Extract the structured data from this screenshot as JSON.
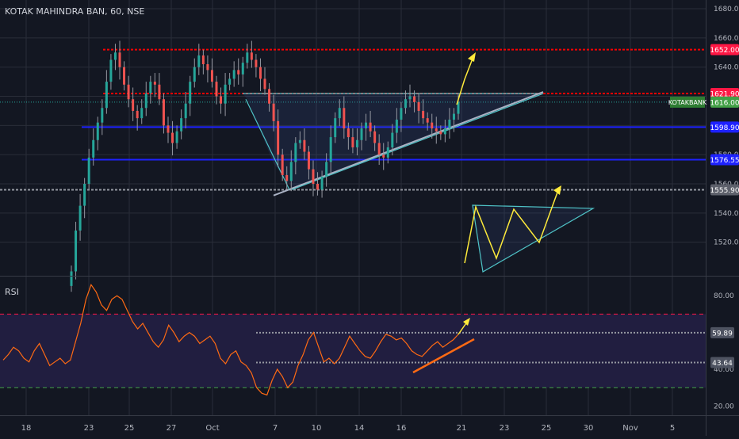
{
  "header": {
    "symbol": "KOTAK MAHINDRA BAN, 60, NSE",
    "rsi_label": "RSI"
  },
  "colors": {
    "background": "#131722",
    "grid": "#2a2e39",
    "bull": "#26a69a",
    "bear": "#ef5350",
    "resistance": "#ff0000",
    "support": "#1e22ff",
    "gray_level": "#9598a1",
    "pattern_line": "#4fc3c7",
    "wick": "#9598a1",
    "arrow": "#ffeb3b",
    "rsi_line": "#ff6a13",
    "rsi_zone": "#211e40"
  },
  "chart_data": [
    {
      "type": "candlestick",
      "title": "KOTAK MAHINDRA BAN, 60, NSE",
      "x_tick_labels": [
        "18",
        "23",
        "25",
        "27",
        "Oct",
        "7",
        "10",
        "14",
        "16",
        "21",
        "23",
        "25",
        "30",
        "Nov",
        "5"
      ],
      "y_tick_labels": [
        "1680.00",
        "1660.00",
        "1640.00",
        "1620.00",
        "1600.00",
        "1580.00",
        "1560.00",
        "1540.00",
        "1520.00"
      ],
      "ylim": [
        1497,
        1686
      ],
      "price_levels": [
        {
          "label": "1652.00",
          "value": 1652.0,
          "kind": "resistance"
        },
        {
          "label": "1621.90",
          "value": 1621.9,
          "kind": "resistance"
        },
        {
          "label": "1598.90",
          "value": 1598.9,
          "kind": "support"
        },
        {
          "label": "1576.55",
          "value": 1576.55,
          "kind": "support"
        },
        {
          "label": "1555.90",
          "value": 1555.9,
          "kind": "gray"
        }
      ],
      "last_price": {
        "label": "KOTAKBANK",
        "value_label": "1616.00",
        "value": 1616.0
      },
      "candles_close": [
        1500,
        1528,
        1545,
        1560,
        1578,
        1590,
        1602,
        1612,
        1630,
        1645,
        1650,
        1640,
        1628,
        1618,
        1610,
        1605,
        1612,
        1622,
        1630,
        1628,
        1618,
        1600,
        1595,
        1588,
        1596,
        1605,
        1615,
        1630,
        1640,
        1648,
        1642,
        1638,
        1630,
        1620,
        1615,
        1628,
        1632,
        1638,
        1635,
        1643,
        1650,
        1645,
        1640,
        1632,
        1625,
        1615,
        1603,
        1580,
        1566,
        1562,
        1575,
        1588,
        1590,
        1582,
        1570,
        1560,
        1556,
        1565,
        1575,
        1592,
        1605,
        1612,
        1598,
        1592,
        1585,
        1590,
        1598,
        1602,
        1596,
        1588,
        1580,
        1578,
        1585,
        1595,
        1604,
        1612,
        1618,
        1620,
        1616,
        1610,
        1605,
        1602,
        1598,
        1596,
        1594,
        1598,
        1604,
        1608,
        1616
      ],
      "candles_open": [
        1490,
        1500,
        1528,
        1545,
        1560,
        1578,
        1590,
        1602,
        1612,
        1630,
        1645,
        1650,
        1640,
        1628,
        1618,
        1610,
        1605,
        1612,
        1622,
        1630,
        1628,
        1618,
        1600,
        1595,
        1588,
        1596,
        1605,
        1615,
        1630,
        1640,
        1648,
        1642,
        1638,
        1630,
        1620,
        1615,
        1628,
        1632,
        1638,
        1635,
        1643,
        1650,
        1645,
        1640,
        1632,
        1625,
        1615,
        1603,
        1580,
        1566,
        1562,
        1575,
        1588,
        1590,
        1582,
        1570,
        1560,
        1556,
        1565,
        1575,
        1592,
        1605,
        1612,
        1598,
        1592,
        1585,
        1590,
        1598,
        1602,
        1596,
        1588,
        1580,
        1578,
        1585,
        1595,
        1604,
        1612,
        1618,
        1620,
        1616,
        1610,
        1605,
        1602,
        1598,
        1596,
        1594,
        1598,
        1604,
        1608
      ]
    },
    {
      "type": "line",
      "title": "RSI",
      "y_tick_labels": [
        "80.00",
        "40.00",
        "20.00"
      ],
      "ylim": [
        15,
        90
      ],
      "reference_levels": [
        {
          "value": 70,
          "label": "",
          "kind": "upper"
        },
        {
          "value": 30,
          "label": "",
          "kind": "lower"
        },
        {
          "value": 59.89,
          "label": "59.89",
          "kind": "gray"
        },
        {
          "value": 43.64,
          "label": "43.64",
          "kind": "gray"
        }
      ],
      "rsi_values": [
        45,
        48,
        52,
        50,
        46,
        44,
        50,
        54,
        48,
        42,
        44,
        46,
        43,
        45,
        55,
        65,
        78,
        86,
        82,
        75,
        72,
        78,
        80,
        78,
        72,
        66,
        62,
        65,
        60,
        55,
        52,
        56,
        64,
        60,
        55,
        58,
        60,
        58,
        54,
        56,
        58,
        54,
        46,
        43,
        48,
        50,
        44,
        42,
        38,
        30,
        27,
        26,
        34,
        40,
        36,
        30,
        33,
        42,
        48,
        56,
        60,
        52,
        44,
        46,
        43,
        46,
        52,
        58,
        54,
        50,
        47,
        46,
        50,
        55,
        59,
        58,
        56,
        57,
        54,
        50,
        48,
        47,
        50,
        53,
        55,
        52,
        54,
        56,
        59
      ]
    }
  ]
}
